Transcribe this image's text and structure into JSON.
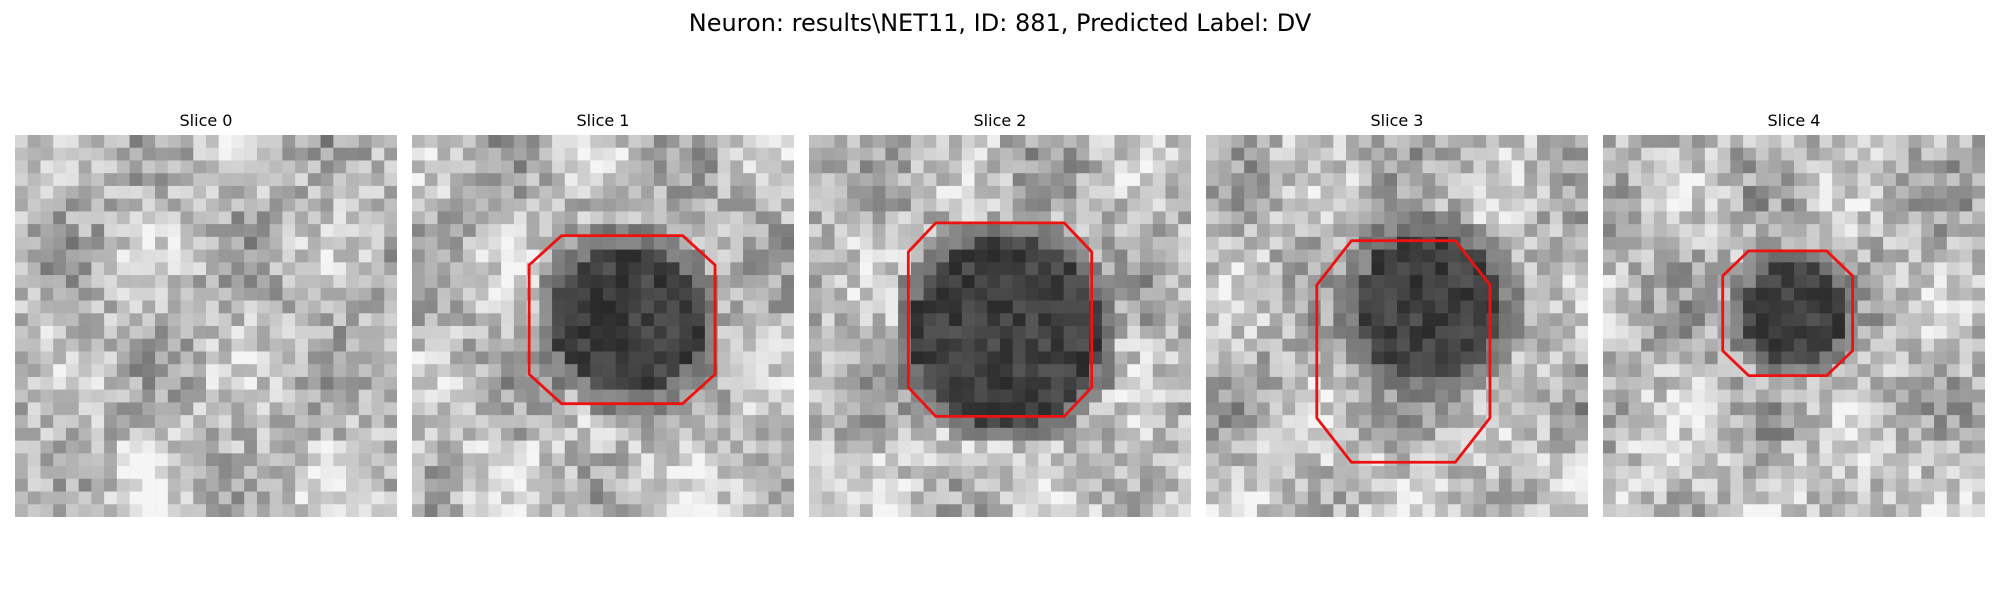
{
  "figure": {
    "title": "Neuron: results\\NET11, ID: 881, Predicted Label: DV",
    "contour_color": "#ee1111"
  },
  "panels": [
    {
      "title": "Slice 0",
      "dark_blob": null,
      "outline": null
    },
    {
      "title": "Slice 1",
      "dark_blob": {
        "cx": 16.5,
        "cy": 14,
        "r": 6
      },
      "outline": {
        "cx": 16.5,
        "cy": 14.5,
        "rx": 7.3,
        "ry": 6.6,
        "oct": 0.35
      }
    },
    {
      "title": "Slice 2",
      "dark_blob": {
        "cx": 15,
        "cy": 15,
        "r": 7.5
      },
      "outline": {
        "cx": 15,
        "cy": 14.5,
        "rx": 7.2,
        "ry": 7.6,
        "oct": 0.3
      }
    },
    {
      "title": "Slice 3",
      "dark_blob": {
        "cx": 17,
        "cy": 13,
        "r": 5.8
      },
      "outline": {
        "cx": 15.5,
        "cy": 17,
        "rx": 6.8,
        "ry": 8.7,
        "oct": 0.4
      }
    },
    {
      "title": "Slice 4",
      "dark_blob": {
        "cx": 14.5,
        "cy": 13.5,
        "r": 4
      },
      "outline": {
        "cx": 14.5,
        "cy": 14,
        "rx": 5.1,
        "ry": 4.9,
        "oct": 0.4
      }
    }
  ]
}
